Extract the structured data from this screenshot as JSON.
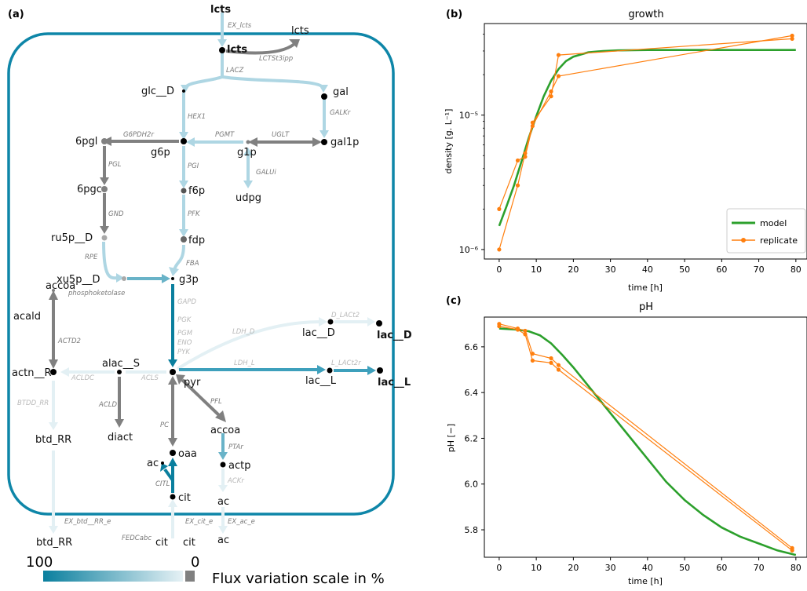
{
  "panel_a": {
    "label": "(a)",
    "metabolites": {
      "lcts_ext": "lcts",
      "lcts_out": "lcts",
      "lcts_in": "lcts",
      "glc": "glc__D",
      "gal": "gal",
      "sixpgl": "6pgl",
      "g6p": "g6p",
      "g1p": "g1p",
      "gal1p": "gal1p",
      "sixpgc": "6pgc",
      "f6p": "f6p",
      "udpg": "udpg",
      "ru5p": "ru5p__D",
      "fdp": "fdp",
      "xu5p": "xu5p__D",
      "g3p": "g3p",
      "accoa1": "accoa",
      "acald": "acald",
      "lac_D_in": "lac__D",
      "lac_D_out": "lac__D",
      "actn": "actn__R",
      "alac": "alac__S",
      "pyr": "pyr",
      "lac_L_in": "lac__L",
      "lac_L_out": "lac__L",
      "btd_in": "btd_RR",
      "diact": "diact",
      "accoa2": "accoa",
      "ac_small": "ac",
      "oaa": "oaa",
      "actp": "actp",
      "ac_in": "ac",
      "cit_in": "cit",
      "btd_out": "btd_RR",
      "cit_out1": "cit",
      "cit_out2": "cit",
      "ac_out": "ac"
    },
    "reactions": {
      "ex_lcts": "EX_lcts",
      "lctst3ipp": "LCTSt3ipp",
      "lacz": "LACZ",
      "galkr": "GALKr",
      "hex1": "HEX1",
      "g6pdh2r": "G6PDH2r",
      "pgmt": "PGMT",
      "uglt": "UGLT",
      "pgl": "PGL",
      "pgi": "PGI",
      "galui": "GALUi",
      "gnd": "GND",
      "pfk": "PFK",
      "rpe": "RPE",
      "fba": "FBA",
      "phosphoketolase": "phosphoketolase",
      "gapd": "GAPD",
      "pgk": "PGK",
      "pgm": "PGM",
      "eno": "ENO",
      "pyk": "PYK",
      "actd2": "ACTD2",
      "ldh_d": "LDH_D",
      "d_lact2": "D_LACt2",
      "acldc": "ACLDC",
      "acls": "ACLS",
      "ldh_l": "LDH_L",
      "l_lact2r": "L_LACt2r",
      "btdd_rr": "BTDD_RR",
      "acld": "ACLD",
      "pfl": "PFL",
      "pc": "PC",
      "ptar": "PTAr",
      "citl": "CITL",
      "ackr": "ACKr",
      "ex_btd": "EX_btd__RR_e",
      "fedcabc": "FEDCabc",
      "ex_cit": "EX_cit_e",
      "ex_ac": "EX_ac_e"
    },
    "scale": {
      "max_label": "100",
      "min_label": "0",
      "caption": "Flux variation scale in %",
      "color_high": "#0a7f9e",
      "color_low": "#e6f1f5",
      "color_zero": "#808080"
    },
    "colors": {
      "membrane": "#0e86a8",
      "grey_arrow": "#808080",
      "light_arrow": "#aed6e3",
      "mid_arrow": "#69b3c8",
      "dark_arrow": "#0a7f9e"
    }
  },
  "panel_b": {
    "label": "(b)",
    "title": "growth",
    "ylabel": "density [g. L⁻¹]",
    "xlabel": "time [h]",
    "legend": {
      "model": "model",
      "replicate": "replicate"
    },
    "ytick_labels": [
      "10⁻⁶",
      "10⁻⁵"
    ],
    "xtick_labels": [
      "0",
      "10",
      "20",
      "30",
      "40",
      "50",
      "60",
      "70",
      "80"
    ]
  },
  "panel_c": {
    "label": "(c)",
    "title": "pH",
    "ylabel": "pH [−]",
    "xlabel": "time [h]",
    "ytick_labels": [
      "5.8",
      "6.0",
      "6.2",
      "6.4",
      "6.6"
    ],
    "xtick_labels": [
      "0",
      "10",
      "20",
      "30",
      "40",
      "50",
      "60",
      "70",
      "80"
    ]
  },
  "chart_data": [
    {
      "type": "line",
      "title": "growth",
      "xlabel": "time [h]",
      "ylabel": "density [g. L⁻¹]",
      "yscale": "log",
      "xlim": [
        -4,
        83
      ],
      "ylim": [
        8.5e-07,
        4.8e-05
      ],
      "legend_position": "bottom-right",
      "series": [
        {
          "name": "model",
          "color": "#2ca02c",
          "x": [
            0,
            2,
            4,
            6,
            8,
            10,
            12,
            14,
            16,
            18,
            20,
            24,
            28,
            32,
            40,
            50,
            60,
            70,
            80
          ],
          "y": [
            1.5e-06,
            2.1e-06,
            3e-06,
            4.5e-06,
            6.8e-06,
            9.8e-06,
            1.38e-05,
            1.8e-05,
            2.2e-05,
            2.52e-05,
            2.72e-05,
            2.93e-05,
            3e-05,
            3.03e-05,
            3.05e-05,
            3.05e-05,
            3.05e-05,
            3.05e-05,
            3.05e-05
          ]
        },
        {
          "name": "replicate",
          "color": "#ff7f0e",
          "x": [
            0,
            5,
            7,
            9,
            14,
            16,
            79
          ],
          "y": [
            1e-06,
            3e-06,
            5.2e-06,
            8.8e-06,
            1.38e-05,
            2.8e-05,
            3.7e-05
          ]
        },
        {
          "name": "",
          "color": "#ff7f0e",
          "x": [
            0,
            5,
            7,
            9,
            14,
            16,
            79
          ],
          "y": [
            2e-06,
            4.6e-06,
            4.9e-06,
            8.3e-06,
            1.5e-05,
            1.95e-05,
            3.9e-05
          ]
        }
      ]
    },
    {
      "type": "line",
      "title": "pH",
      "xlabel": "time [h]",
      "ylabel": "pH [−]",
      "xlim": [
        -4,
        83
      ],
      "ylim": [
        5.68,
        6.73
      ],
      "series": [
        {
          "name": "model",
          "color": "#2ca02c",
          "x": [
            0,
            5,
            8,
            11,
            14,
            17,
            20,
            25,
            30,
            35,
            40,
            45,
            50,
            55,
            60,
            65,
            70,
            75,
            80
          ],
          "y": [
            6.68,
            6.675,
            6.668,
            6.65,
            6.615,
            6.565,
            6.51,
            6.41,
            6.31,
            6.21,
            6.11,
            6.01,
            5.93,
            5.865,
            5.81,
            5.77,
            5.74,
            5.71,
            5.69
          ]
        },
        {
          "name": "",
          "color": "#ff7f0e",
          "x": [
            0,
            5,
            7,
            9,
            14,
            16,
            79
          ],
          "y": [
            6.7,
            6.68,
            6.67,
            6.57,
            6.55,
            6.52,
            5.72
          ]
        },
        {
          "name": "",
          "color": "#ff7f0e",
          "x": [
            0,
            5,
            7,
            9,
            14,
            16,
            79
          ],
          "y": [
            6.69,
            6.675,
            6.655,
            6.54,
            6.53,
            6.5,
            5.71
          ]
        }
      ]
    }
  ]
}
